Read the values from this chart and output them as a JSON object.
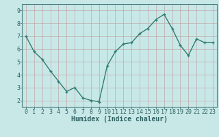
{
  "x": [
    0,
    1,
    2,
    3,
    4,
    5,
    6,
    7,
    8,
    9,
    10,
    11,
    12,
    13,
    14,
    15,
    16,
    17,
    18,
    19,
    20,
    21,
    22,
    23
  ],
  "y": [
    7.0,
    5.8,
    5.2,
    4.3,
    3.5,
    2.7,
    3.0,
    2.2,
    2.0,
    1.9,
    4.7,
    5.8,
    6.4,
    6.5,
    7.2,
    7.6,
    8.3,
    8.7,
    7.6,
    6.3,
    5.5,
    6.8,
    6.5,
    6.5
  ],
  "xlabel": "Humidex (Indice chaleur)",
  "line_color": "#2e7d6e",
  "marker": "+",
  "bg_color": "#c8e8e8",
  "grid_color": "#c0a8a8",
  "xlim_min": -0.5,
  "xlim_max": 23.5,
  "ylim_min": 1.5,
  "ylim_max": 9.5,
  "yticks": [
    2,
    3,
    4,
    5,
    6,
    7,
    8,
    9
  ],
  "xticks": [
    0,
    1,
    2,
    3,
    4,
    5,
    6,
    7,
    8,
    9,
    10,
    11,
    12,
    13,
    14,
    15,
    16,
    17,
    18,
    19,
    20,
    21,
    22,
    23
  ],
  "xtick_labels": [
    "0",
    "1",
    "2",
    "3",
    "4",
    "5",
    "6",
    "7",
    "8",
    "9",
    "10",
    "11",
    "12",
    "13",
    "14",
    "15",
    "16",
    "17",
    "18",
    "19",
    "20",
    "21",
    "22",
    "23"
  ],
  "tick_label_color": "#2e6060",
  "xlabel_color": "#2e6060",
  "font_size_tick": 6,
  "font_size_xlabel": 7,
  "line_width": 1.0,
  "marker_size": 3.5,
  "spine_color": "#4a8080"
}
